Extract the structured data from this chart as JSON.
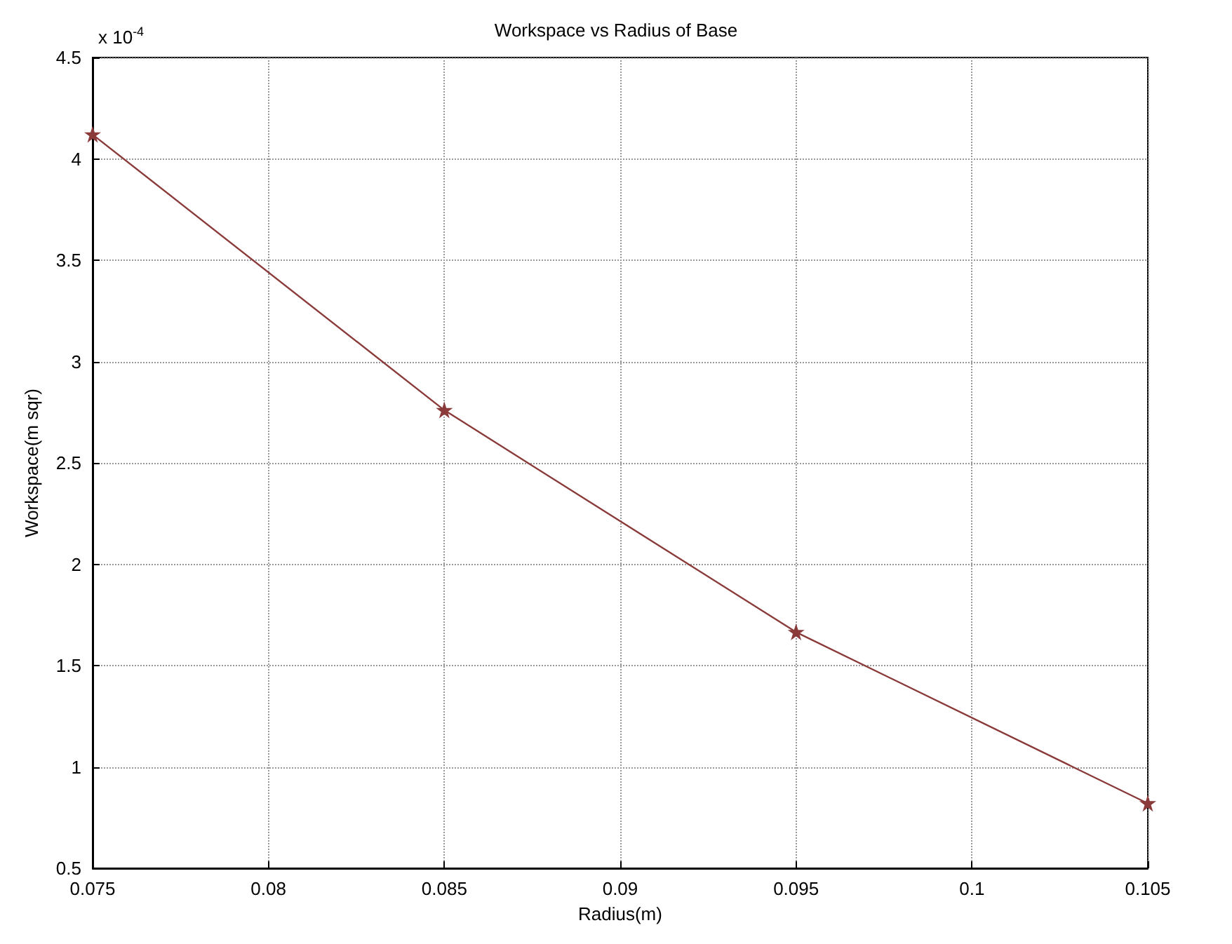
{
  "chart_data": {
    "type": "line",
    "title": "Workspace vs Radius of Base",
    "xlabel": "Radius(m)",
    "ylabel": "Workspace(m sqr)",
    "annotations": [
      "x 10$^{-4}$"
    ],
    "x": [
      0.075,
      0.085,
      0.095,
      0.105
    ],
    "series": [
      {
        "color": "#8b3a3a",
        "values": [
          4.12,
          2.76,
          1.665,
          0.82
        ]
      }
    ],
    "xlim": [
      0.075,
      0.105
    ],
    "xticks": [
      0.075,
      0.08,
      0.085,
      0.09,
      0.095,
      0.1,
      0.105
    ],
    "ylim": [
      0.5,
      4.5
    ],
    "yticks": [
      0.5,
      1,
      1.5,
      2,
      2.5,
      3,
      3.5,
      4,
      4.5
    ],
    "grid": true,
    "marker": "star",
    "line_style": "solid"
  }
}
